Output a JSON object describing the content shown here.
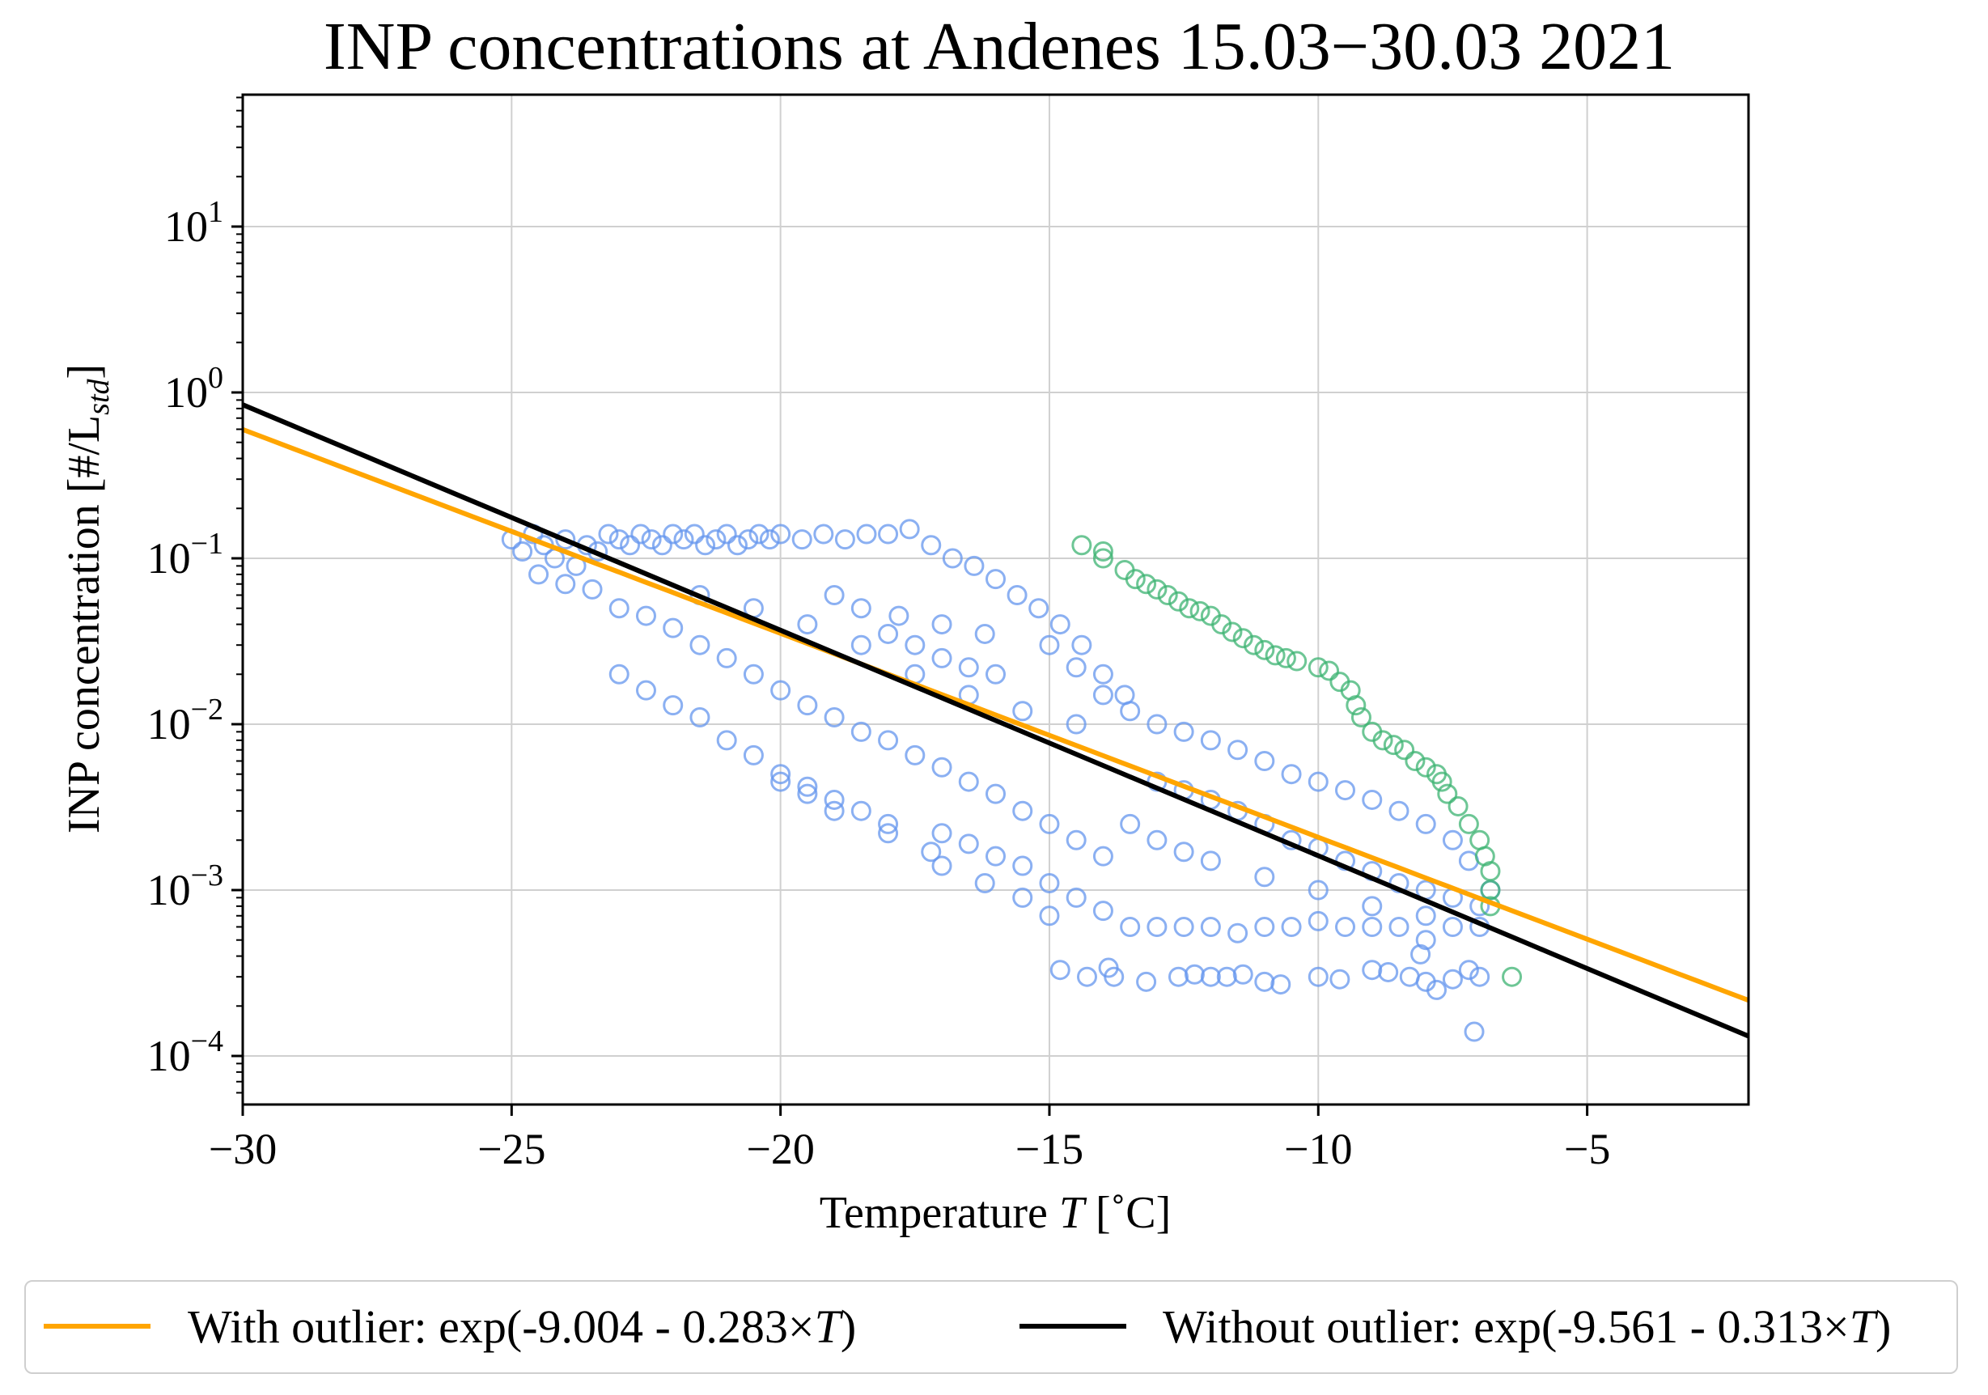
{
  "chart_data": {
    "type": "scatter",
    "title": "INP concentrations at Andenes 15.03−30.03 2021",
    "xlabel_text": "Temperature",
    "xlabel_symbol": "T",
    "xlabel_unit": "[˚C]",
    "ylabel_main": "INP concentration [#/L",
    "ylabel_sub": "std",
    "ylabel_close": "]",
    "xlim": [
      -30,
      -2
    ],
    "ylim": [
      5e-05,
      60
    ],
    "yscale": "log",
    "grid": true,
    "x_ticks": [
      -30,
      -25,
      -20,
      -15,
      -10,
      -5
    ],
    "x_tick_labels": [
      "−30",
      "−25",
      "−20",
      "−15",
      "−10",
      "−5"
    ],
    "y_ticks": [
      0.0001,
      0.001,
      0.01,
      0.1,
      1,
      10
    ],
    "y_tick_labels": [
      {
        "base": "10",
        "exp": "−4"
      },
      {
        "base": "10",
        "exp": "−3"
      },
      {
        "base": "10",
        "exp": "−2"
      },
      {
        "base": "10",
        "exp": "−1"
      },
      {
        "base": "10",
        "exp": "0"
      },
      {
        "base": "10",
        "exp": "1"
      }
    ],
    "colors": {
      "main": "#6495ED",
      "outlier": "#3CB371",
      "fit_with": "#FFA500",
      "fit_without": "#000000"
    },
    "fits": [
      {
        "name": "With outlier: exp(-9.004 - 0.283×",
        "symbol": "T",
        "close": ")",
        "a": -9.004,
        "b": -0.283,
        "color": "#FFA500"
      },
      {
        "name": "Without outlier: exp(-9.561 - 0.313×",
        "symbol": "T",
        "close": ")",
        "a": -9.561,
        "b": -0.313,
        "color": "#000000"
      }
    ],
    "series": [
      {
        "role": "main",
        "color": "#6495ED",
        "points": [
          [
            -25.0,
            0.13
          ],
          [
            -24.8,
            0.11
          ],
          [
            -24.6,
            0.14
          ],
          [
            -24.4,
            0.12
          ],
          [
            -24.2,
            0.1
          ],
          [
            -24.0,
            0.13
          ],
          [
            -23.8,
            0.09
          ],
          [
            -23.6,
            0.12
          ],
          [
            -23.4,
            0.11
          ],
          [
            -23.2,
            0.14
          ],
          [
            -23.0,
            0.13
          ],
          [
            -22.8,
            0.12
          ],
          [
            -22.6,
            0.14
          ],
          [
            -22.4,
            0.13
          ],
          [
            -22.2,
            0.12
          ],
          [
            -22.0,
            0.14
          ],
          [
            -21.8,
            0.13
          ],
          [
            -21.6,
            0.14
          ],
          [
            -21.4,
            0.12
          ],
          [
            -21.2,
            0.13
          ],
          [
            -21.0,
            0.14
          ],
          [
            -20.8,
            0.12
          ],
          [
            -20.6,
            0.13
          ],
          [
            -20.4,
            0.14
          ],
          [
            -20.2,
            0.13
          ],
          [
            -20.0,
            0.14
          ],
          [
            -19.6,
            0.13
          ],
          [
            -19.2,
            0.14
          ],
          [
            -18.8,
            0.13
          ],
          [
            -18.4,
            0.14
          ],
          [
            -18.0,
            0.14
          ],
          [
            -17.6,
            0.15
          ],
          [
            -17.2,
            0.12
          ],
          [
            -16.8,
            0.1
          ],
          [
            -16.4,
            0.09
          ],
          [
            -16.0,
            0.075
          ],
          [
            -15.6,
            0.06
          ],
          [
            -15.2,
            0.05
          ],
          [
            -14.8,
            0.04
          ],
          [
            -14.4,
            0.03
          ],
          [
            -14.0,
            0.02
          ],
          [
            -13.6,
            0.015
          ],
          [
            -24.5,
            0.08
          ],
          [
            -24.0,
            0.07
          ],
          [
            -23.5,
            0.065
          ],
          [
            -23.0,
            0.05
          ],
          [
            -22.5,
            0.045
          ],
          [
            -22.0,
            0.038
          ],
          [
            -21.5,
            0.03
          ],
          [
            -21.0,
            0.025
          ],
          [
            -20.5,
            0.02
          ],
          [
            -20.0,
            0.016
          ],
          [
            -19.5,
            0.013
          ],
          [
            -19.0,
            0.011
          ],
          [
            -18.5,
            0.009
          ],
          [
            -18.0,
            0.008
          ],
          [
            -17.5,
            0.0065
          ],
          [
            -17.0,
            0.0055
          ],
          [
            -16.5,
            0.0045
          ],
          [
            -16.0,
            0.0038
          ],
          [
            -15.5,
            0.003
          ],
          [
            -15.0,
            0.0025
          ],
          [
            -14.5,
            0.002
          ],
          [
            -14.0,
            0.0016
          ],
          [
            -23.0,
            0.02
          ],
          [
            -22.5,
            0.016
          ],
          [
            -22.0,
            0.013
          ],
          [
            -21.5,
            0.011
          ],
          [
            -21.0,
            0.008
          ],
          [
            -20.5,
            0.0065
          ],
          [
            -20.0,
            0.005
          ],
          [
            -19.5,
            0.0042
          ],
          [
            -19.0,
            0.0035
          ],
          [
            -18.5,
            0.003
          ],
          [
            -18.0,
            0.0025
          ],
          [
            -17.0,
            0.0022
          ],
          [
            -16.5,
            0.0019
          ],
          [
            -16.0,
            0.0016
          ],
          [
            -15.5,
            0.0014
          ],
          [
            -15.0,
            0.0011
          ],
          [
            -14.5,
            0.0009
          ],
          [
            -14.0,
            0.00075
          ],
          [
            -20.0,
            0.0045
          ],
          [
            -19.5,
            0.0038
          ],
          [
            -19.0,
            0.003
          ],
          [
            -18.0,
            0.0022
          ],
          [
            -17.2,
            0.0017
          ],
          [
            -17.0,
            0.0014
          ],
          [
            -16.2,
            0.0011
          ],
          [
            -15.5,
            0.0009
          ],
          [
            -15.0,
            0.0007
          ],
          [
            -13.5,
            0.0006
          ],
          [
            -13.0,
            0.0006
          ],
          [
            -12.5,
            0.0006
          ],
          [
            -12.0,
            0.0006
          ],
          [
            -11.5,
            0.00055
          ],
          [
            -11.0,
            0.0006
          ],
          [
            -10.5,
            0.0006
          ],
          [
            -10.0,
            0.00065
          ],
          [
            -9.5,
            0.0006
          ],
          [
            -9.0,
            0.0006
          ],
          [
            -8.5,
            0.0006
          ],
          [
            -8.0,
            0.0005
          ],
          [
            -7.5,
            0.0006
          ],
          [
            -7.0,
            0.0006
          ],
          [
            -14.8,
            0.00033
          ],
          [
            -14.3,
            0.0003
          ],
          [
            -13.8,
            0.0003
          ],
          [
            -13.2,
            0.00028
          ],
          [
            -12.6,
            0.0003
          ],
          [
            -12.3,
            0.00031
          ],
          [
            -12.0,
            0.0003
          ],
          [
            -11.7,
            0.0003
          ],
          [
            -11.4,
            0.00031
          ],
          [
            -11.0,
            0.00028
          ],
          [
            -10.7,
            0.00027
          ],
          [
            -10.0,
            0.0003
          ],
          [
            -9.6,
            0.00029
          ],
          [
            -9.0,
            0.00033
          ],
          [
            -8.7,
            0.00032
          ],
          [
            -8.3,
            0.0003
          ],
          [
            -8.0,
            0.00028
          ],
          [
            -7.8,
            0.00025
          ],
          [
            -7.5,
            0.00029
          ],
          [
            -7.2,
            0.00033
          ],
          [
            -7.0,
            0.0003
          ],
          [
            -7.1,
            0.00014
          ],
          [
            -8.1,
            0.00041
          ],
          [
            -13.9,
            0.00034
          ],
          [
            -15.0,
            0.03
          ],
          [
            -14.5,
            0.022
          ],
          [
            -14.0,
            0.015
          ],
          [
            -13.5,
            0.012
          ],
          [
            -13.0,
            0.01
          ],
          [
            -12.5,
            0.009
          ],
          [
            -12.0,
            0.008
          ],
          [
            -11.5,
            0.007
          ],
          [
            -11.0,
            0.006
          ],
          [
            -10.5,
            0.005
          ],
          [
            -10.0,
            0.0045
          ],
          [
            -9.5,
            0.004
          ],
          [
            -9.0,
            0.0035
          ],
          [
            -8.5,
            0.003
          ],
          [
            -8.0,
            0.0025
          ],
          [
            -7.5,
            0.002
          ],
          [
            -7.2,
            0.0015
          ],
          [
            -6.8,
            0.001
          ],
          [
            -13.0,
            0.0045
          ],
          [
            -12.5,
            0.004
          ],
          [
            -12.0,
            0.0035
          ],
          [
            -11.5,
            0.003
          ],
          [
            -11.0,
            0.0025
          ],
          [
            -10.5,
            0.002
          ],
          [
            -10.0,
            0.0018
          ],
          [
            -9.5,
            0.0015
          ],
          [
            -9.0,
            0.0013
          ],
          [
            -8.5,
            0.0011
          ],
          [
            -8.0,
            0.001
          ],
          [
            -7.5,
            0.0009
          ],
          [
            -7.0,
            0.0008
          ],
          [
            -13.5,
            0.0025
          ],
          [
            -13.0,
            0.002
          ],
          [
            -12.5,
            0.0017
          ],
          [
            -12.0,
            0.0015
          ],
          [
            -11.0,
            0.0012
          ],
          [
            -10.0,
            0.001
          ],
          [
            -9.0,
            0.0008
          ],
          [
            -8.0,
            0.0007
          ],
          [
            -18.0,
            0.035
          ],
          [
            -17.5,
            0.03
          ],
          [
            -17.0,
            0.025
          ],
          [
            -16.5,
            0.022
          ],
          [
            -16.0,
            0.02
          ],
          [
            -19.0,
            0.06
          ],
          [
            -18.5,
            0.05
          ],
          [
            -17.8,
            0.045
          ],
          [
            -17.0,
            0.04
          ],
          [
            -16.2,
            0.035
          ],
          [
            -21.5,
            0.06
          ],
          [
            -20.5,
            0.05
          ],
          [
            -19.5,
            0.04
          ],
          [
            -18.5,
            0.03
          ],
          [
            -17.5,
            0.02
          ],
          [
            -16.5,
            0.015
          ],
          [
            -15.5,
            0.012
          ],
          [
            -14.5,
            0.01
          ]
        ]
      },
      {
        "role": "outlier",
        "color": "#3CB371",
        "points": [
          [
            -14.4,
            0.12
          ],
          [
            -14.0,
            0.11
          ],
          [
            -14.0,
            0.1
          ],
          [
            -13.6,
            0.085
          ],
          [
            -13.4,
            0.075
          ],
          [
            -13.2,
            0.07
          ],
          [
            -13.0,
            0.065
          ],
          [
            -12.8,
            0.06
          ],
          [
            -12.6,
            0.055
          ],
          [
            -12.4,
            0.05
          ],
          [
            -12.2,
            0.048
          ],
          [
            -12.0,
            0.045
          ],
          [
            -11.8,
            0.04
          ],
          [
            -11.6,
            0.036
          ],
          [
            -11.4,
            0.033
          ],
          [
            -11.2,
            0.03
          ],
          [
            -11.0,
            0.028
          ],
          [
            -10.8,
            0.026
          ],
          [
            -10.6,
            0.025
          ],
          [
            -10.4,
            0.024
          ],
          [
            -10.0,
            0.022
          ],
          [
            -9.8,
            0.021
          ],
          [
            -9.6,
            0.018
          ],
          [
            -9.4,
            0.016
          ],
          [
            -9.3,
            0.013
          ],
          [
            -9.2,
            0.011
          ],
          [
            -9.0,
            0.009
          ],
          [
            -8.8,
            0.008
          ],
          [
            -8.6,
            0.0075
          ],
          [
            -8.4,
            0.007
          ],
          [
            -8.2,
            0.006
          ],
          [
            -8.0,
            0.0055
          ],
          [
            -7.8,
            0.005
          ],
          [
            -7.7,
            0.0045
          ],
          [
            -7.6,
            0.0038
          ],
          [
            -7.4,
            0.0032
          ],
          [
            -7.2,
            0.0025
          ],
          [
            -7.0,
            0.002
          ],
          [
            -6.9,
            0.0016
          ],
          [
            -6.8,
            0.0013
          ],
          [
            -6.8,
            0.001
          ],
          [
            -6.8,
            0.0008
          ],
          [
            -6.4,
            0.0003
          ]
        ]
      }
    ]
  }
}
